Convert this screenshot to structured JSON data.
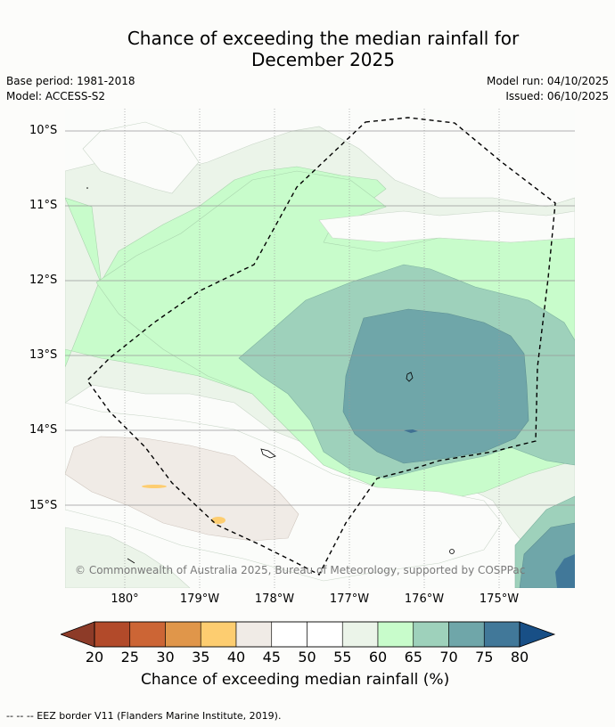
{
  "title_line1": "Chance of exceeding the median rainfall for",
  "title_line2": "December 2025",
  "base_period": "Base period: 1981-2018",
  "model": "Model: ACCESS-S2",
  "model_run": "Model run: 04/10/2025",
  "issued": "Issued: 06/10/2025",
  "map": {
    "lat_labels": [
      "10°S",
      "11°S",
      "12°S",
      "13°S",
      "14°S",
      "15°S"
    ],
    "lon_labels": [
      "180°",
      "179°W",
      "178°W",
      "177°W",
      "176°W",
      "175°W"
    ],
    "copyright": "© Commonwealth of Australia 2025, Bureau of Meteorology, supported by COSPPac"
  },
  "colorbar": {
    "label": "Chance of exceeding median rainfall (%)",
    "ticks": [
      "20",
      "25",
      "30",
      "35",
      "40",
      "45",
      "50",
      "55",
      "60",
      "65",
      "70",
      "75",
      "80"
    ],
    "colors": [
      "#b24a2a",
      "#cc6535",
      "#e0964a",
      "#fdcd70",
      "#f0ebe6",
      "#ffffff",
      "#ffffff",
      "#ebf4e9",
      "#c8fccb",
      "#9ed1bb",
      "#6fa6a9",
      "#417899"
    ],
    "under_color": "#8d3b28",
    "over_color": "#184f86"
  },
  "footer": "--  --  -- EEZ border V11 (Flanders Marine Institute, 2019)."
}
